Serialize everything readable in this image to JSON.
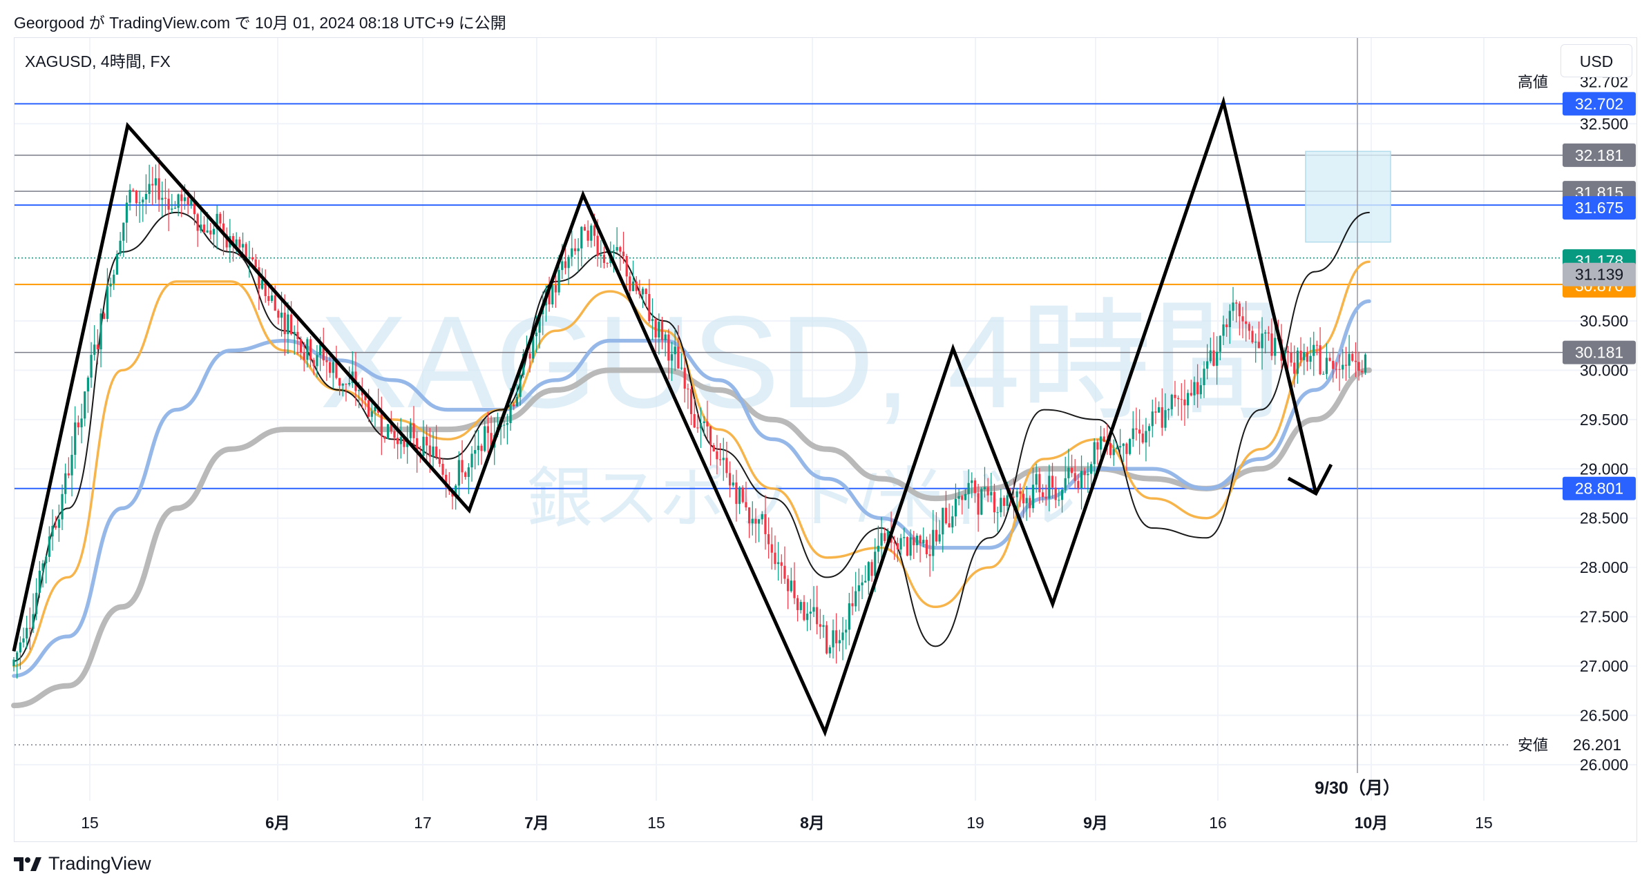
{
  "header": {
    "publish_info": "Georgood が TradingView.com で 10月 01, 2024 08:18 UTC+9 に公開"
  },
  "toolbar": {
    "symbol_title": "XAGUSD, 4時間, FX",
    "currency_label": "USD"
  },
  "watermark": {
    "main": "XAGUSD, 4時間",
    "sub": "銀スポット/米ドル"
  },
  "footer": {
    "brand": "TradingView"
  },
  "colors": {
    "blue_line": "#2962ff",
    "orange_line": "#ff9800",
    "gray_line": "#787b86",
    "up_candle": "#089981",
    "down_candle": "#f23645",
    "ma_fast": "#000000",
    "ma_orange": "#f5b041",
    "ma_blue": "#90b4e8",
    "ma_gray": "#b5b5b5",
    "pattern_line": "#000000",
    "box_fill": "#d7eef8"
  },
  "chart_data": {
    "type": "candlestick",
    "symbol": "XAGUSD",
    "timeframe": "4時間",
    "y_axis": {
      "ylim": [
        25.95,
        32.95
      ],
      "ticks": [
        "32.500",
        "30.500",
        "30.000",
        "29.500",
        "29.000",
        "28.500",
        "28.000",
        "27.500",
        "27.000",
        "26.500",
        "26.000"
      ]
    },
    "x_axis": {
      "tick_labels": [
        {
          "label": "15",
          "x_index": 0
        },
        {
          "label": "6月",
          "x_index": 1
        },
        {
          "label": "17",
          "x_index": 2
        },
        {
          "label": "7月",
          "x_index": 3
        },
        {
          "label": "15",
          "x_index": 4
        },
        {
          "label": "8月",
          "x_index": 5
        },
        {
          "label": "19",
          "x_index": 6
        },
        {
          "label": "9月",
          "x_index": 7
        },
        {
          "label": "16",
          "x_index": 8
        },
        {
          "label": "10月",
          "x_index": 9
        },
        {
          "label": "15",
          "x_index": 10
        }
      ],
      "cursor_label": "9/30（月）"
    },
    "high": {
      "label": "高値",
      "value": "32.702"
    },
    "low": {
      "label": "安値",
      "value": "26.201"
    },
    "horizontal_levels": [
      {
        "value": 32.702,
        "label": "32.702",
        "color": "#2962ff",
        "kind": "line"
      },
      {
        "value": 32.181,
        "label": "32.181",
        "color": "#787b86",
        "kind": "line"
      },
      {
        "value": 31.815,
        "label": "31.815",
        "color": "#787b86",
        "kind": "line"
      },
      {
        "value": 31.675,
        "label": "31.675",
        "color": "#2962ff",
        "kind": "line"
      },
      {
        "value": 30.87,
        "label": "30.870",
        "color": "#ff9800",
        "kind": "line"
      },
      {
        "value": 30.181,
        "label": "30.181",
        "color": "#787b86",
        "kind": "line"
      },
      {
        "value": 28.801,
        "label": "28.801",
        "color": "#2962ff",
        "kind": "line"
      }
    ],
    "price_tags": [
      {
        "value": 31.178,
        "label": "31.178",
        "color": "#089981"
      },
      {
        "value": 31.139,
        "label": "31.139",
        "color": "#b2b5be"
      }
    ],
    "zigzag_pattern": [
      {
        "t": 0.0,
        "price": 27.15
      },
      {
        "t": 0.08,
        "price": 32.48
      },
      {
        "t": 0.32,
        "price": 28.58
      },
      {
        "t": 0.4,
        "price": 31.78
      },
      {
        "t": 0.57,
        "price": 26.33
      },
      {
        "t": 0.66,
        "price": 30.22
      },
      {
        "t": 0.73,
        "price": 27.63
      },
      {
        "t": 0.85,
        "price": 32.72
      },
      {
        "t": 0.915,
        "price": 28.75
      }
    ],
    "forecast_arrow_tip": {
      "t": 0.915,
      "price": 28.75
    },
    "ma_series": [
      {
        "name": "MA fast",
        "color": "#000000",
        "values": [
          27.05,
          28.6,
          31.2,
          31.6,
          31.2,
          30.4,
          29.8,
          29.3,
          29.1,
          29.6,
          30.9,
          31.2,
          30.5,
          29.2,
          28.7,
          27.9,
          28.4,
          27.2,
          28.3,
          29.6,
          29.5,
          28.4,
          28.3,
          29.6,
          31.0,
          31.6
        ]
      },
      {
        "name": "MA orange",
        "color": "#f5b041",
        "values": [
          27.0,
          27.9,
          30.0,
          30.9,
          30.9,
          30.2,
          29.8,
          29.5,
          29.3,
          29.6,
          30.4,
          30.8,
          30.4,
          29.4,
          28.8,
          28.1,
          28.2,
          27.6,
          28.0,
          29.1,
          29.3,
          28.7,
          28.5,
          29.2,
          30.2,
          31.1
        ]
      },
      {
        "name": "MA blue",
        "color": "#90b4e8",
        "values": [
          26.9,
          27.3,
          28.6,
          29.6,
          30.2,
          30.3,
          30.1,
          29.9,
          29.6,
          29.6,
          29.9,
          30.3,
          30.3,
          29.9,
          29.3,
          28.9,
          28.5,
          28.2,
          28.2,
          28.7,
          29.0,
          29.0,
          28.8,
          29.1,
          29.8,
          30.7
        ]
      },
      {
        "name": "MA gray",
        "color": "#b5b5b5",
        "values": [
          26.6,
          26.8,
          27.6,
          28.6,
          29.2,
          29.4,
          29.4,
          29.4,
          29.4,
          29.5,
          29.8,
          30.0,
          30.0,
          29.8,
          29.5,
          29.2,
          28.9,
          28.7,
          28.8,
          29.0,
          29.0,
          28.9,
          28.8,
          29.0,
          29.5,
          30.0
        ]
      }
    ]
  }
}
